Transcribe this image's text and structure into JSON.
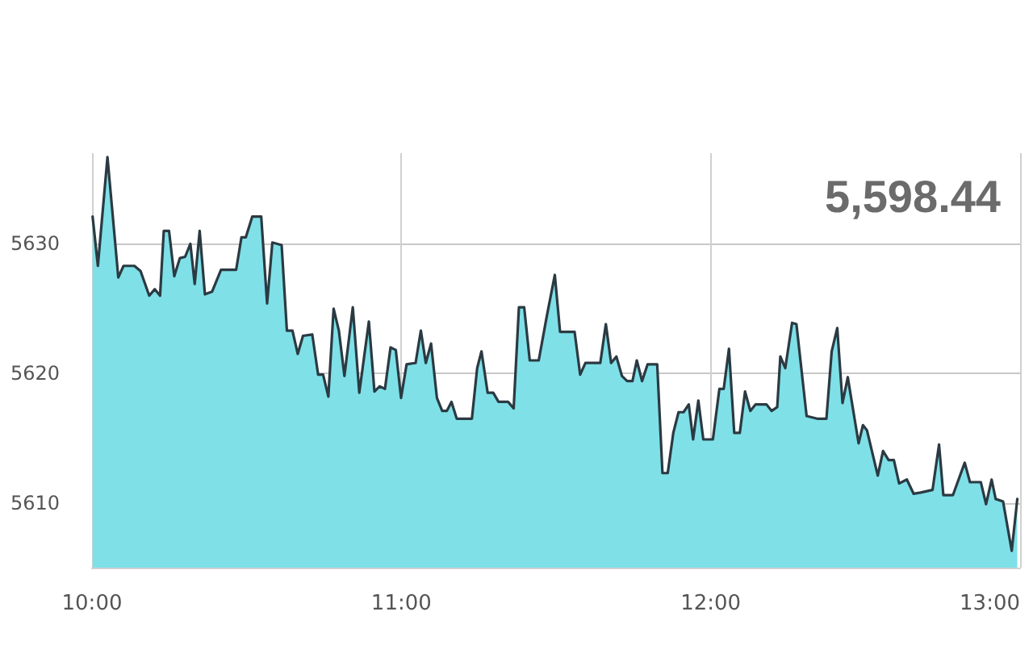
{
  "chart_data": {
    "type": "area",
    "annotations": [
      "5,598.44"
    ],
    "x": [
      10.002,
      10.019,
      10.05,
      10.085,
      10.102,
      10.137,
      10.157,
      10.185,
      10.203,
      10.22,
      10.232,
      10.249,
      10.266,
      10.284,
      10.301,
      10.318,
      10.332,
      10.348,
      10.365,
      10.388,
      10.417,
      10.466,
      10.483,
      10.497,
      10.518,
      10.547,
      10.566,
      10.583,
      10.613,
      10.63,
      10.648,
      10.665,
      10.682,
      10.712,
      10.731,
      10.747,
      10.764,
      10.781,
      10.798,
      10.816,
      10.843,
      10.864,
      10.895,
      10.913,
      10.93,
      10.947,
      10.965,
      10.982,
      10.999,
      11.017,
      11.046,
      11.063,
      11.079,
      11.096,
      11.115,
      11.132,
      11.147,
      11.162,
      11.179,
      11.228,
      11.245,
      11.259,
      11.279,
      11.297,
      11.314,
      11.345,
      11.363,
      11.38,
      11.397,
      11.415,
      11.444,
      11.47,
      11.496,
      11.513,
      11.56,
      11.578,
      11.595,
      11.643,
      11.661,
      11.678,
      11.695,
      11.713,
      11.73,
      11.747,
      11.761,
      11.778,
      11.796,
      11.827,
      11.844,
      11.861,
      11.879,
      11.896,
      11.912,
      11.929,
      11.943,
      11.96,
      11.976,
      12.007,
      12.028,
      12.042,
      12.059,
      12.076,
      12.094,
      12.111,
      12.128,
      12.145,
      12.18,
      12.197,
      12.215,
      12.225,
      12.241,
      12.263,
      12.277,
      12.31,
      12.344,
      12.374,
      12.391,
      12.409,
      12.426,
      12.443,
      12.478,
      12.492,
      12.505,
      12.54,
      12.557,
      12.575,
      12.592,
      12.609,
      12.634,
      12.656,
      12.679,
      12.717,
      12.738,
      12.752,
      12.783,
      12.821,
      12.838,
      12.873,
      12.89,
      12.908,
      12.921,
      12.945,
      12.973,
      12.991
    ],
    "series": [
      {
        "color": "#7fe0e8",
        "values": [
          5632.1,
          5628.3,
          5636.7,
          5627.4,
          5628.3,
          5628.3,
          5627.9,
          5626.0,
          5626.5,
          5626.0,
          5631.0,
          5631.0,
          5627.5,
          5628.9,
          5629.0,
          5630.0,
          5626.9,
          5631.0,
          5626.1,
          5626.3,
          5628.0,
          5628.0,
          5630.5,
          5630.5,
          5632.1,
          5632.1,
          5625.4,
          5630.1,
          5629.9,
          5623.3,
          5623.3,
          5621.5,
          5622.9,
          5623.0,
          5619.9,
          5619.9,
          5618.2,
          5625.0,
          5623.3,
          5619.8,
          5625.1,
          5618.5,
          5624.0,
          5618.6,
          5619.0,
          5618.8,
          5622.0,
          5621.8,
          5618.1,
          5620.7,
          5620.8,
          5623.3,
          5620.8,
          5622.3,
          5618.1,
          5617.1,
          5617.1,
          5617.8,
          5616.5,
          5616.5,
          5620.4,
          5621.7,
          5618.5,
          5618.5,
          5617.8,
          5617.8,
          5617.3,
          5625.1,
          5625.1,
          5621.0,
          5621.0,
          5624.4,
          5627.6,
          5623.2,
          5623.2,
          5619.9,
          5620.8,
          5620.8,
          5623.8,
          5620.8,
          5621.3,
          5619.8,
          5619.4,
          5619.4,
          5621.0,
          5619.4,
          5620.7,
          5620.7,
          5612.3,
          5612.3,
          5615.4,
          5617.0,
          5617.0,
          5617.6,
          5614.9,
          5617.9,
          5614.9,
          5614.9,
          5618.8,
          5618.8,
          5621.9,
          5615.4,
          5615.4,
          5618.6,
          5617.1,
          5617.6,
          5617.6,
          5617.1,
          5617.4,
          5621.3,
          5620.4,
          5623.9,
          5623.8,
          5616.7,
          5616.5,
          5616.5,
          5621.7,
          5623.5,
          5617.7,
          5619.7,
          5614.6,
          5616.0,
          5615.6,
          5612.1,
          5614.0,
          5613.3,
          5613.3,
          5611.5,
          5611.8,
          5610.7,
          5610.8,
          5611.0,
          5614.5,
          5610.6,
          5610.6,
          5613.1,
          5611.6,
          5611.6,
          5609.9,
          5611.8,
          5610.3,
          5610.1,
          5606.3,
          5610.3
        ]
      }
    ],
    "xlim": [
      10,
      13
    ],
    "xticks": [
      {
        "value": 10,
        "label": "10:00"
      },
      {
        "value": 11,
        "label": "11:00"
      },
      {
        "value": 12,
        "label": "12:00"
      },
      {
        "value": 13,
        "label": "13:00"
      }
    ],
    "ylim": [
      5605,
      5637
    ],
    "yticks": [
      5610,
      5620,
      5630
    ],
    "grid": true,
    "marker": "none",
    "line_style": "solid"
  }
}
